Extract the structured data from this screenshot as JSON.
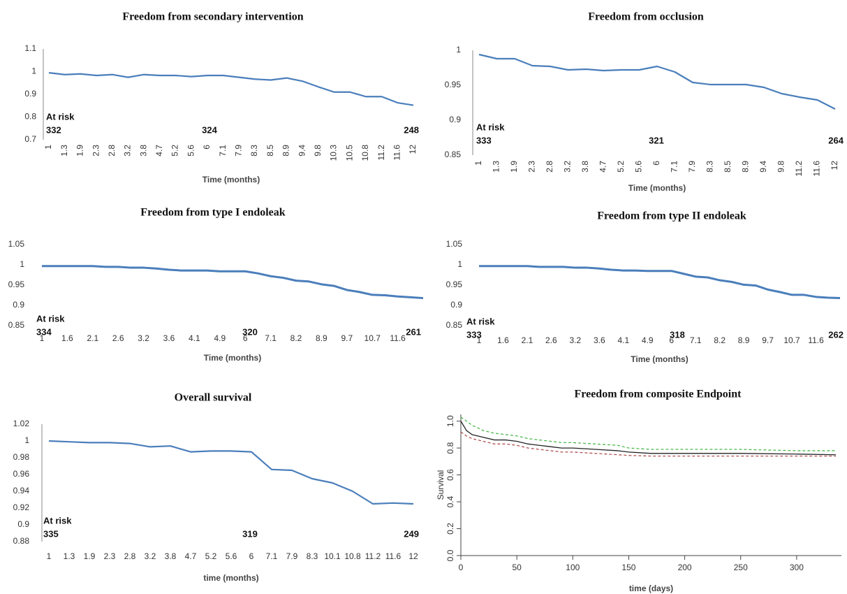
{
  "chart_data": [
    {
      "type": "line",
      "title": "Freedom from secondary intervention",
      "categories": [
        "1",
        "1.3",
        "1.9",
        "2.3",
        "2.8",
        "3.2",
        "3.8",
        "4.7",
        "5.2",
        "5.6",
        "6",
        "7.1",
        "7.9",
        "8.3",
        "8.5",
        "8.9",
        "9.4",
        "9.8",
        "10.3",
        "10.5",
        "10.8",
        "11.2",
        "11.6",
        "12"
      ],
      "values": [
        0.995,
        0.987,
        0.99,
        0.983,
        0.987,
        0.975,
        0.987,
        0.983,
        0.983,
        0.978,
        0.983,
        0.983,
        0.975,
        0.967,
        0.963,
        0.972,
        0.958,
        0.933,
        0.91,
        0.91,
        0.89,
        0.89,
        0.863,
        0.852
      ],
      "color": "#4a7ebb",
      "ylim": [
        0.7,
        1.1
      ],
      "yticks": [
        0.7,
        0.8,
        0.9,
        1,
        1.1
      ],
      "xlabel": "Time (months)",
      "at_risk_label": "At risk",
      "at_risk": [
        332,
        324,
        248
      ]
    },
    {
      "type": "line",
      "title": "Freedom from occlusion",
      "categories": [
        "1",
        "1.3",
        "1.9",
        "2.3",
        "2.8",
        "3.2",
        "3.8",
        "4.7",
        "5.2",
        "5.6",
        "6",
        "7.1",
        "7.9",
        "8.3",
        "8.5",
        "8.9",
        "9.4",
        "9.8",
        "11.2",
        "11.6",
        "12"
      ],
      "values": [
        0.994,
        0.988,
        0.988,
        0.978,
        0.977,
        0.972,
        0.973,
        0.971,
        0.972,
        0.972,
        0.977,
        0.969,
        0.954,
        0.951,
        0.951,
        0.951,
        0.947,
        0.938,
        0.933,
        0.929,
        0.916
      ],
      "color": "#4a7ebb",
      "ylim": [
        0.85,
        1
      ],
      "yticks": [
        0.85,
        0.9,
        0.95,
        1
      ],
      "xlabel": "Time (months)",
      "at_risk_label": "At risk",
      "at_risk": [
        333,
        321,
        264
      ]
    },
    {
      "type": "line",
      "title": "Freedom from type I endoleak",
      "categories": [
        "1",
        null,
        "1.6",
        null,
        "2.1",
        null,
        "2.6",
        null,
        "3.2",
        null,
        "3.6",
        null,
        "4.1",
        null,
        "4.9",
        null,
        "6",
        null,
        "7.1",
        null,
        "8.2",
        null,
        "8.9",
        null,
        "9.7",
        null,
        "10.7",
        null,
        "11.6",
        null,
        null
      ],
      "values": [
        0.997,
        0.997,
        0.997,
        0.997,
        0.997,
        0.995,
        0.995,
        0.993,
        0.993,
        0.991,
        0.988,
        0.986,
        0.986,
        0.986,
        0.984,
        0.984,
        0.984,
        0.979,
        0.972,
        0.968,
        0.961,
        0.959,
        0.952,
        0.948,
        0.938,
        0.933,
        0.926,
        0.925,
        0.922,
        0.92,
        0.918
      ],
      "color": "#4a7ebb",
      "ylim": [
        0.85,
        1.05
      ],
      "yticks": [
        0.85,
        0.9,
        0.95,
        1,
        1.05
      ],
      "xlabel": "Time (months)",
      "at_risk_label": "At risk",
      "at_risk": [
        334,
        320,
        261
      ]
    },
    {
      "type": "line",
      "title": "Freedom from type II endoleak",
      "categories": [
        "1",
        null,
        "1.6",
        null,
        "2.1",
        null,
        "2.6",
        null,
        "3.2",
        null,
        "3.6",
        null,
        "4.1",
        null,
        "4.9",
        null,
        "6",
        null,
        "7.1",
        null,
        "8.2",
        null,
        "8.9",
        null,
        "9.7",
        null,
        "10.7",
        null,
        "11.6",
        null,
        null
      ],
      "values": [
        0.997,
        0.997,
        0.997,
        0.997,
        0.997,
        0.995,
        0.995,
        0.995,
        0.993,
        0.993,
        0.991,
        0.988,
        0.986,
        0.986,
        0.985,
        0.985,
        0.985,
        0.978,
        0.971,
        0.969,
        0.962,
        0.958,
        0.951,
        0.949,
        0.939,
        0.933,
        0.926,
        0.926,
        0.921,
        0.919,
        0.918
      ],
      "color": "#4a7ebb",
      "ylim": [
        0.85,
        1.05
      ],
      "yticks": [
        0.85,
        0.9,
        0.95,
        1,
        1.05
      ],
      "xlabel": "Time (months)",
      "at_risk_label": "At risk",
      "at_risk": [
        333,
        318,
        262
      ]
    },
    {
      "type": "line",
      "title": "Overall survival",
      "categories": [
        "1",
        "1.3",
        "1.9",
        "2.3",
        "2.8",
        "3.2",
        "3.8",
        "4.7",
        "5.2",
        "5.6",
        "6",
        "7.1",
        "7.9",
        "8.3",
        "10.1",
        "10.8",
        "11.2",
        "11.6",
        "12"
      ],
      "values": [
        1.0,
        0.999,
        0.998,
        0.998,
        0.997,
        0.993,
        0.994,
        0.987,
        0.988,
        0.988,
        0.987,
        0.966,
        0.965,
        0.955,
        0.95,
        0.94,
        0.925,
        0.926,
        0.925
      ],
      "color": "#4a7ebb",
      "ylim": [
        0.88,
        1.02
      ],
      "yticks": [
        0.88,
        0.9,
        0.92,
        0.94,
        0.96,
        0.98,
        1,
        1.02
      ],
      "xlabel": "time (months)",
      "at_risk_label": "At risk",
      "at_risk": [
        335,
        319,
        249
      ]
    },
    {
      "type": "km",
      "title": "Freedom from composite Endpoint",
      "x": [
        0,
        5,
        10,
        20,
        30,
        40,
        50,
        60,
        70,
        80,
        90,
        100,
        120,
        140,
        150,
        170,
        200,
        250,
        300,
        335
      ],
      "series": [
        {
          "color": "#222222",
          "dashed": false,
          "values": [
            1.0,
            0.93,
            0.9,
            0.88,
            0.86,
            0.86,
            0.85,
            0.83,
            0.82,
            0.81,
            0.8,
            0.8,
            0.79,
            0.78,
            0.77,
            0.76,
            0.76,
            0.76,
            0.755,
            0.75
          ]
        },
        {
          "color": "#b05050",
          "dashed": true,
          "values": [
            0.92,
            0.89,
            0.87,
            0.85,
            0.83,
            0.83,
            0.82,
            0.8,
            0.79,
            0.78,
            0.77,
            0.77,
            0.76,
            0.75,
            0.745,
            0.74,
            0.74,
            0.74,
            0.74,
            0.74
          ]
        },
        {
          "color": "#4cb84c",
          "dashed": true,
          "values": [
            1.03,
            1.0,
            0.97,
            0.93,
            0.91,
            0.9,
            0.89,
            0.87,
            0.86,
            0.85,
            0.84,
            0.84,
            0.83,
            0.82,
            0.8,
            0.79,
            0.79,
            0.79,
            0.78,
            0.78
          ]
        }
      ],
      "xlim": [
        0,
        340
      ],
      "xticks": [
        0,
        50,
        100,
        150,
        200,
        250,
        300
      ],
      "ylim": [
        0,
        1.05
      ],
      "yticks": [
        {
          "value": 0,
          "label": "0.0"
        },
        {
          "value": 0.2,
          "label": "0.2"
        },
        {
          "value": 0.4,
          "label": "0.4"
        },
        {
          "value": 0.6,
          "label": "0.6"
        },
        {
          "value": 0.8,
          "label": "0.8"
        },
        {
          "value": 1,
          "label": "1.0"
        }
      ],
      "xlabel": "time (days)",
      "ylabel": "Survival"
    }
  ]
}
